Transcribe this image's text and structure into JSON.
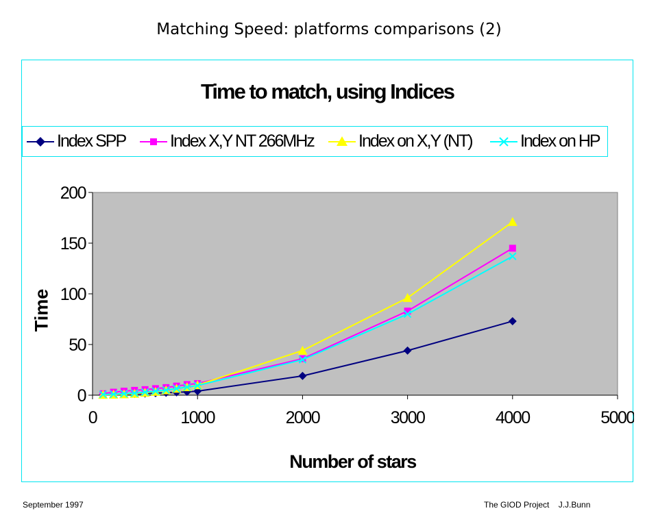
{
  "slide": {
    "title": "Matching Speed: platforms comparisons (2)",
    "footer_left": "September 1997",
    "footer_right": "The GIOD Project    J.J.Bunn"
  },
  "colors": {
    "frame_border": "#00e5f0",
    "plot_background": "#c0c0c0",
    "index_spp": "#000080",
    "index_xy_nt": "#ff00ff",
    "index_on_xy_nt": "#ffff00",
    "index_on_hp": "#00ffff"
  },
  "chart_data": {
    "type": "line",
    "title": "Time to match, using Indices",
    "xlabel": "Number of stars",
    "ylabel": "Time",
    "xlim": [
      0,
      5000
    ],
    "ylim": [
      0,
      200
    ],
    "x_ticks": [
      "0",
      "1000",
      "2000",
      "3000",
      "4000",
      "5000"
    ],
    "y_ticks": [
      "0",
      "50",
      "100",
      "150",
      "200"
    ],
    "grid": false,
    "legend_position": "top",
    "series": [
      {
        "name": "Index SPP",
        "marker": "diamond",
        "color": "#000080",
        "x": [
          100,
          200,
          300,
          400,
          500,
          600,
          700,
          800,
          900,
          1000,
          2000,
          3000,
          4000
        ],
        "y": [
          0.5,
          0.8,
          1.0,
          1.3,
          1.6,
          2.0,
          2.4,
          2.8,
          3.3,
          4.0,
          19,
          44,
          73
        ]
      },
      {
        "name": "Index X,Y NT 266MHz",
        "marker": "square",
        "color": "#ff00ff",
        "x": [
          100,
          200,
          300,
          400,
          500,
          600,
          700,
          800,
          900,
          1000,
          2000,
          3000,
          4000
        ],
        "y": [
          1.5,
          3.0,
          4.0,
          4.8,
          5.5,
          6.5,
          7.5,
          9.0,
          10.5,
          11.5,
          36,
          83,
          145
        ]
      },
      {
        "name": "Index on X,Y (NT)",
        "marker": "triangle",
        "color": "#ffff00",
        "x": [
          100,
          200,
          300,
          400,
          500,
          600,
          700,
          800,
          900,
          1000,
          2000,
          3000,
          4000
        ],
        "y": [
          0.5,
          0.7,
          1.0,
          1.5,
          2.5,
          3.5,
          5.0,
          6.5,
          8.0,
          10.0,
          44,
          96,
          171
        ]
      },
      {
        "name": "Index on HP",
        "marker": "x",
        "color": "#00ffff",
        "x": [
          100,
          200,
          300,
          400,
          500,
          600,
          700,
          800,
          900,
          1000,
          2000,
          3000,
          4000
        ],
        "y": [
          0.8,
          1.0,
          1.5,
          2.0,
          3.0,
          4.0,
          5.0,
          6.5,
          8.0,
          9.5,
          35,
          80,
          137
        ]
      }
    ]
  }
}
